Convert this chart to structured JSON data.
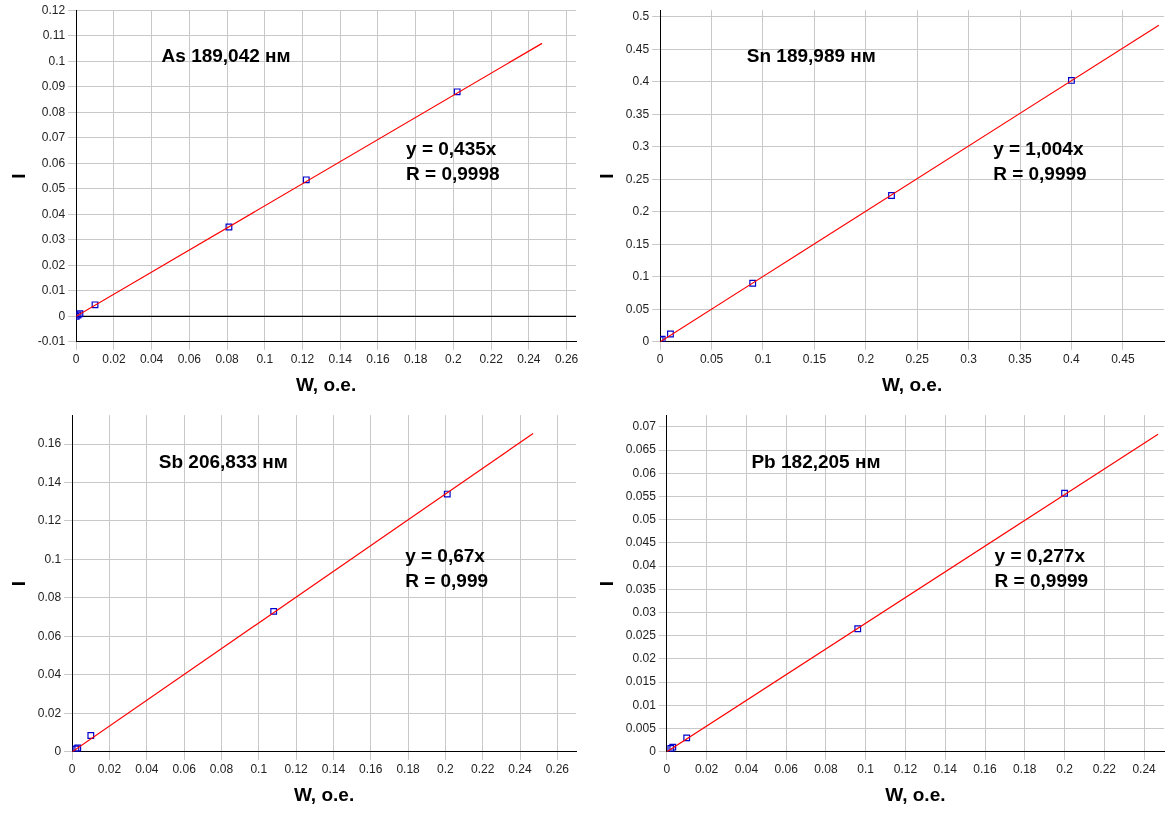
{
  "chart_data": [
    {
      "type": "scatter",
      "xlabel": "W, о.е.",
      "ylabel": "I",
      "annotations": [
        "As 189,042 нм",
        "y = 0,435x\nR = 0,9998"
      ],
      "xlim": [
        0,
        0.265
      ],
      "xticks": [
        0,
        0.02,
        0.04,
        0.06,
        0.08,
        0.1,
        0.12,
        0.14,
        0.16,
        0.18,
        0.2,
        0.22,
        0.24,
        0.26
      ],
      "ylim": [
        -0.01,
        0.12
      ],
      "yticks": [
        -0.01,
        0,
        0.01,
        0.02,
        0.03,
        0.04,
        0.05,
        0.06,
        0.07,
        0.08,
        0.09,
        0.1,
        0.11,
        0.12
      ],
      "grid": true,
      "legend": false,
      "ref_lines": [
        {
          "axis": "y",
          "value": 0,
          "color": "#000000"
        }
      ],
      "series": [
        {
          "type": "line",
          "color": "#ff0000",
          "marker": "none",
          "x": [
            0,
            0.247
          ],
          "values": [
            0,
            0.107
          ]
        },
        {
          "type": "scatter",
          "color": "#0000cc",
          "marker": "square",
          "x": [
            0,
            0.001,
            0.002,
            0.01,
            0.081,
            0.122,
            0.202
          ],
          "values": [
            0,
            0.0005,
            0.001,
            0.0045,
            0.035,
            0.0535,
            0.088
          ]
        }
      ]
    },
    {
      "type": "scatter",
      "xlabel": "W, о.е.",
      "ylabel": "I",
      "annotations": [
        "Sn 189,989 нм",
        "y = 1,004x\nR = 0,9999"
      ],
      "xlim": [
        0,
        0.49
      ],
      "xticks": [
        0,
        0.05,
        0.1,
        0.15,
        0.2,
        0.25,
        0.3,
        0.35,
        0.4,
        0.45
      ],
      "ylim": [
        0,
        0.51
      ],
      "yticks": [
        0,
        0.05,
        0.1,
        0.15,
        0.2,
        0.25,
        0.3,
        0.35,
        0.4,
        0.45,
        0.5
      ],
      "grid": true,
      "legend": false,
      "series": [
        {
          "type": "line",
          "color": "#ff0000",
          "marker": "none",
          "x": [
            0,
            0.485
          ],
          "values": [
            0,
            0.487
          ]
        },
        {
          "type": "scatter",
          "color": "#0000cc",
          "marker": "square",
          "x": [
            0,
            0.002,
            0.01,
            0.09,
            0.225,
            0.4
          ],
          "values": [
            0.003,
            0.004,
            0.012,
            0.09,
            0.225,
            0.402
          ]
        }
      ]
    },
    {
      "type": "scatter",
      "xlabel": "W, о.е.",
      "ylabel": "I",
      "annotations": [
        "Sb 206,833 нм",
        "y = 0,67x\nR = 0,999"
      ],
      "xlim": [
        0,
        0.27
      ],
      "xticks": [
        0,
        0.02,
        0.04,
        0.06,
        0.08,
        0.1,
        0.12,
        0.14,
        0.16,
        0.18,
        0.2,
        0.22,
        0.24,
        0.26
      ],
      "ylim": [
        0,
        0.175
      ],
      "yticks": [
        0,
        0.02,
        0.04,
        0.06,
        0.08,
        0.1,
        0.12,
        0.14,
        0.16
      ],
      "grid": true,
      "legend": false,
      "series": [
        {
          "type": "line",
          "color": "#ff0000",
          "marker": "none",
          "x": [
            0,
            0.247
          ],
          "values": [
            0,
            0.1655
          ]
        },
        {
          "type": "scatter",
          "color": "#0000cc",
          "marker": "square",
          "x": [
            0.002,
            0.003,
            0.01,
            0.108,
            0.201
          ],
          "values": [
            0.0015,
            0.002,
            0.0085,
            0.073,
            0.134
          ]
        }
      ]
    },
    {
      "type": "scatter",
      "xlabel": "W, о.е.",
      "ylabel": "I",
      "annotations": [
        "Pb 182,205 нм",
        "y = 0,277x\nR = 0,9999"
      ],
      "xlim": [
        0,
        0.25
      ],
      "xticks": [
        0,
        0.02,
        0.04,
        0.06,
        0.08,
        0.1,
        0.12,
        0.14,
        0.16,
        0.18,
        0.2,
        0.22,
        0.24
      ],
      "ylim": [
        0,
        0.0725
      ],
      "yticks": [
        0,
        0.005,
        0.01,
        0.015,
        0.02,
        0.025,
        0.03,
        0.035,
        0.04,
        0.045,
        0.05,
        0.055,
        0.06,
        0.065,
        0.07
      ],
      "grid": true,
      "legend": false,
      "series": [
        {
          "type": "line",
          "color": "#ff0000",
          "marker": "none",
          "x": [
            0,
            0.247
          ],
          "values": [
            0,
            0.0684
          ]
        },
        {
          "type": "scatter",
          "color": "#0000cc",
          "marker": "square",
          "x": [
            0.002,
            0.003,
            0.01,
            0.096,
            0.2
          ],
          "values": [
            0.0007,
            0.001,
            0.003,
            0.0265,
            0.0557
          ]
        }
      ]
    }
  ]
}
